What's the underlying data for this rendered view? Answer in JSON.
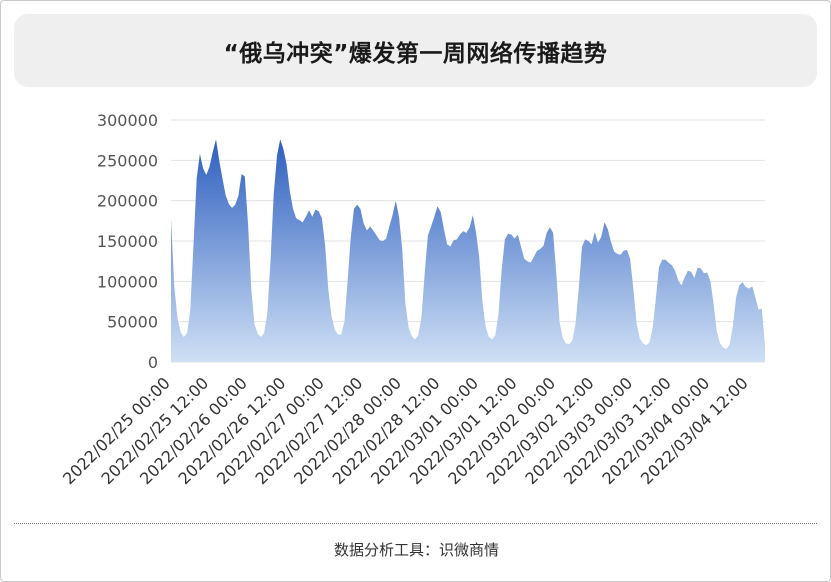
{
  "title": "“俄乌冲突”爆发第一周网络传播趋势",
  "footer": "数据分析工具：识微商情",
  "chart_data": {
    "type": "area",
    "title": "“俄乌冲突”爆发第一周网络传播趋势",
    "xlabel": "",
    "ylabel": "",
    "ylim": [
      0,
      300000
    ],
    "yticks": [
      0,
      50000,
      100000,
      150000,
      200000,
      250000,
      300000
    ],
    "ytick_labels": [
      "0",
      "50000",
      "100000",
      "150000",
      "200000",
      "250000",
      "300000"
    ],
    "xlim": [
      "2022/02/25 00:00",
      "2022/03/04 12:00"
    ],
    "xtick_labels": [
      "2022/02/25 00:00",
      "2022/02/25 12:00",
      "2022/02/26 00:00",
      "2022/02/26 12:00",
      "2022/02/27 00:00",
      "2022/02/27 12:00",
      "2022/02/28 00:00",
      "2022/02/28 12:00",
      "2022/03/01 00:00",
      "2022/03/01 12:00",
      "2022/03/02 00:00",
      "2022/03/02 12:00",
      "2022/03/03 00:00",
      "2022/03/03 12:00",
      "2022/03/04 00:00",
      "2022/03/04 12:00"
    ],
    "grid": "horizontal",
    "colors": {
      "top": "#2e5fbf",
      "bottom": "#cfe0f5"
    },
    "series": [
      {
        "points": [
          [
            "2022/02/25 00:00",
            177000
          ],
          [
            "2022/02/25 01:00",
            95000
          ],
          [
            "2022/02/25 02:00",
            55000
          ],
          [
            "2022/02/25 03:00",
            37000
          ],
          [
            "2022/02/25 04:00",
            31000
          ],
          [
            "2022/02/25 05:00",
            36000
          ],
          [
            "2022/02/25 06:00",
            65000
          ],
          [
            "2022/02/25 07:00",
            145000
          ],
          [
            "2022/02/25 08:00",
            228000
          ],
          [
            "2022/02/25 09:00",
            258000
          ],
          [
            "2022/02/25 10:00",
            240000
          ],
          [
            "2022/02/25 11:00",
            232000
          ],
          [
            "2022/02/25 12:00",
            242000
          ],
          [
            "2022/02/25 13:00",
            260000
          ],
          [
            "2022/02/25 14:00",
            276000
          ],
          [
            "2022/02/25 15:00",
            250000
          ],
          [
            "2022/02/25 16:00",
            228000
          ],
          [
            "2022/02/25 17:00",
            207000
          ],
          [
            "2022/02/25 18:00",
            196000
          ],
          [
            "2022/02/25 19:00",
            191000
          ],
          [
            "2022/02/25 20:00",
            195000
          ],
          [
            "2022/02/25 21:00",
            206000
          ],
          [
            "2022/02/25 22:00",
            233000
          ],
          [
            "2022/02/25 23:00",
            230000
          ],
          [
            "2022/02/26 00:00",
            170000
          ],
          [
            "2022/02/26 01:00",
            90000
          ],
          [
            "2022/02/26 02:00",
            47000
          ],
          [
            "2022/02/26 03:00",
            35000
          ],
          [
            "2022/02/26 04:00",
            31000
          ],
          [
            "2022/02/26 05:00",
            36000
          ],
          [
            "2022/02/26 06:00",
            60000
          ],
          [
            "2022/02/26 07:00",
            125000
          ],
          [
            "2022/02/26 08:00",
            208000
          ],
          [
            "2022/02/26 09:00",
            256000
          ],
          [
            "2022/02/26 10:00",
            276000
          ],
          [
            "2022/02/26 11:00",
            264000
          ],
          [
            "2022/02/26 12:00",
            245000
          ],
          [
            "2022/02/26 13:00",
            212000
          ],
          [
            "2022/02/26 14:00",
            190000
          ],
          [
            "2022/02/26 15:00",
            178000
          ],
          [
            "2022/02/26 16:00",
            176000
          ],
          [
            "2022/02/26 17:00",
            173000
          ],
          [
            "2022/02/26 18:00",
            180000
          ],
          [
            "2022/02/26 19:00",
            188000
          ],
          [
            "2022/02/26 20:00",
            180000
          ],
          [
            "2022/02/26 21:00",
            189000
          ],
          [
            "2022/02/26 22:00",
            187000
          ],
          [
            "2022/02/26 23:00",
            178000
          ],
          [
            "2022/02/27 00:00",
            145000
          ],
          [
            "2022/02/27 01:00",
            90000
          ],
          [
            "2022/02/27 02:00",
            57000
          ],
          [
            "2022/02/27 03:00",
            40000
          ],
          [
            "2022/02/27 04:00",
            34000
          ],
          [
            "2022/02/27 05:00",
            34000
          ],
          [
            "2022/02/27 06:00",
            50000
          ],
          [
            "2022/02/27 07:00",
            100000
          ],
          [
            "2022/02/27 08:00",
            155000
          ],
          [
            "2022/02/27 09:00",
            190000
          ],
          [
            "2022/02/27 10:00",
            195000
          ],
          [
            "2022/02/27 11:00",
            190000
          ],
          [
            "2022/02/27 12:00",
            172000
          ],
          [
            "2022/02/27 13:00",
            163000
          ],
          [
            "2022/02/27 14:00",
            168000
          ],
          [
            "2022/02/27 15:00",
            163000
          ],
          [
            "2022/02/27 16:00",
            157000
          ],
          [
            "2022/02/27 17:00",
            151000
          ],
          [
            "2022/02/27 18:00",
            150000
          ],
          [
            "2022/02/27 19:00",
            153000
          ],
          [
            "2022/02/27 20:00",
            168000
          ],
          [
            "2022/02/27 21:00",
            182000
          ],
          [
            "2022/02/27 22:00",
            200000
          ],
          [
            "2022/02/27 23:00",
            180000
          ],
          [
            "2022/02/28 00:00",
            140000
          ],
          [
            "2022/02/28 01:00",
            72000
          ],
          [
            "2022/02/28 02:00",
            43000
          ],
          [
            "2022/02/28 03:00",
            32000
          ],
          [
            "2022/02/28 04:00",
            28000
          ],
          [
            "2022/02/28 05:00",
            33000
          ],
          [
            "2022/02/28 06:00",
            55000
          ],
          [
            "2022/02/28 07:00",
            110000
          ],
          [
            "2022/02/28 08:00",
            157000
          ],
          [
            "2022/02/28 09:00",
            168000
          ],
          [
            "2022/02/28 10:00",
            180000
          ],
          [
            "2022/02/28 11:00",
            193000
          ],
          [
            "2022/02/28 12:00",
            186000
          ],
          [
            "2022/02/28 13:00",
            165000
          ],
          [
            "2022/02/28 14:00",
            146000
          ],
          [
            "2022/02/28 15:00",
            143000
          ],
          [
            "2022/02/28 16:00",
            151000
          ],
          [
            "2022/02/28 17:00",
            152000
          ],
          [
            "2022/02/28 18:00",
            158000
          ],
          [
            "2022/02/28 19:00",
            162000
          ],
          [
            "2022/02/28 20:00",
            160000
          ],
          [
            "2022/02/28 21:00",
            167000
          ],
          [
            "2022/02/28 22:00",
            182000
          ],
          [
            "2022/02/28 23:00",
            161000
          ],
          [
            "2022/03/01 00:00",
            130000
          ],
          [
            "2022/03/01 01:00",
            75000
          ],
          [
            "2022/03/01 02:00",
            43000
          ],
          [
            "2022/03/01 03:00",
            31000
          ],
          [
            "2022/03/01 04:00",
            28000
          ],
          [
            "2022/03/01 05:00",
            33000
          ],
          [
            "2022/03/01 06:00",
            60000
          ],
          [
            "2022/03/01 07:00",
            115000
          ],
          [
            "2022/03/01 08:00",
            152000
          ],
          [
            "2022/03/01 09:00",
            159000
          ],
          [
            "2022/03/01 10:00",
            158000
          ],
          [
            "2022/03/01 11:00",
            153000
          ],
          [
            "2022/03/01 12:00",
            158000
          ],
          [
            "2022/03/01 13:00",
            143000
          ],
          [
            "2022/03/01 14:00",
            128000
          ],
          [
            "2022/03/01 15:00",
            125000
          ],
          [
            "2022/03/01 16:00",
            123000
          ],
          [
            "2022/03/01 17:00",
            130000
          ],
          [
            "2022/03/01 18:00",
            138000
          ],
          [
            "2022/03/01 19:00",
            140000
          ],
          [
            "2022/03/01 20:00",
            144000
          ],
          [
            "2022/03/01 21:00",
            160000
          ],
          [
            "2022/03/01 22:00",
            167000
          ],
          [
            "2022/03/01 23:00",
            160000
          ],
          [
            "2022/03/02 00:00",
            110000
          ],
          [
            "2022/03/02 01:00",
            50000
          ],
          [
            "2022/03/02 02:00",
            30000
          ],
          [
            "2022/03/02 03:00",
            23000
          ],
          [
            "2022/03/02 04:00",
            22000
          ],
          [
            "2022/03/02 05:00",
            27000
          ],
          [
            "2022/03/02 06:00",
            48000
          ],
          [
            "2022/03/02 07:00",
            92000
          ],
          [
            "2022/03/02 08:00",
            143000
          ],
          [
            "2022/03/02 09:00",
            152000
          ],
          [
            "2022/03/02 10:00",
            150000
          ],
          [
            "2022/03/02 11:00",
            146000
          ],
          [
            "2022/03/02 12:00",
            161000
          ],
          [
            "2022/03/02 13:00",
            148000
          ],
          [
            "2022/03/02 14:00",
            155000
          ],
          [
            "2022/03/02 15:00",
            173000
          ],
          [
            "2022/03/02 16:00",
            165000
          ],
          [
            "2022/03/02 17:00",
            149000
          ],
          [
            "2022/03/02 18:00",
            137000
          ],
          [
            "2022/03/02 19:00",
            134000
          ],
          [
            "2022/03/02 20:00",
            133000
          ],
          [
            "2022/03/02 21:00",
            138000
          ],
          [
            "2022/03/02 22:00",
            139000
          ],
          [
            "2022/03/02 23:00",
            128000
          ],
          [
            "2022/03/03 00:00",
            90000
          ],
          [
            "2022/03/03 01:00",
            48000
          ],
          [
            "2022/03/03 02:00",
            29000
          ],
          [
            "2022/03/03 03:00",
            23000
          ],
          [
            "2022/03/03 04:00",
            21000
          ],
          [
            "2022/03/03 05:00",
            24000
          ],
          [
            "2022/03/03 06:00",
            42000
          ],
          [
            "2022/03/03 07:00",
            78000
          ],
          [
            "2022/03/03 08:00",
            118000
          ],
          [
            "2022/03/03 09:00",
            127000
          ],
          [
            "2022/03/03 10:00",
            127000
          ],
          [
            "2022/03/03 11:00",
            123000
          ],
          [
            "2022/03/03 12:00",
            120000
          ],
          [
            "2022/03/03 13:00",
            113000
          ],
          [
            "2022/03/03 14:00",
            101000
          ],
          [
            "2022/03/03 15:00",
            95000
          ],
          [
            "2022/03/03 16:00",
            105000
          ],
          [
            "2022/03/03 17:00",
            113000
          ],
          [
            "2022/03/03 18:00",
            112000
          ],
          [
            "2022/03/03 19:00",
            104000
          ],
          [
            "2022/03/03 20:00",
            117000
          ],
          [
            "2022/03/03 21:00",
            116000
          ],
          [
            "2022/03/03 22:00",
            110000
          ],
          [
            "2022/03/03 23:00",
            111000
          ],
          [
            "2022/03/04 00:00",
            100000
          ],
          [
            "2022/03/04 01:00",
            72000
          ],
          [
            "2022/03/04 02:00",
            38000
          ],
          [
            "2022/03/04 03:00",
            23000
          ],
          [
            "2022/03/04 04:00",
            18000
          ],
          [
            "2022/03/04 05:00",
            16000
          ],
          [
            "2022/03/04 06:00",
            22000
          ],
          [
            "2022/03/04 07:00",
            45000
          ],
          [
            "2022/03/04 08:00",
            80000
          ],
          [
            "2022/03/04 09:00",
            95000
          ],
          [
            "2022/03/04 10:00",
            99000
          ],
          [
            "2022/03/04 11:00",
            93000
          ],
          [
            "2022/03/04 12:00",
            91000
          ],
          [
            "2022/03/04 13:00",
            94000
          ],
          [
            "2022/03/04 14:00",
            80000
          ],
          [
            "2022/03/04 15:00",
            65000
          ],
          [
            "2022/03/04 16:00",
            66000
          ],
          [
            "2022/03/04 17:00",
            20000
          ]
        ]
      }
    ]
  }
}
